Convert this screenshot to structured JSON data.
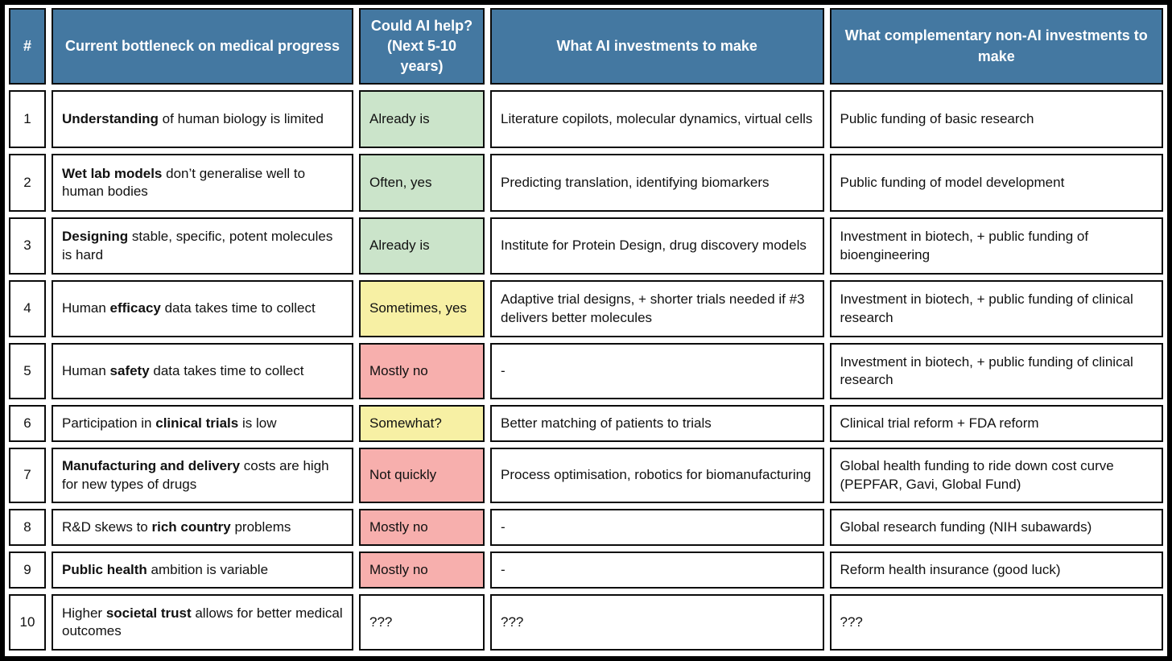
{
  "table": {
    "header": {
      "bg_color": "#4478A1",
      "text_color": "#FFFFFF",
      "columns": [
        "#",
        "Current bottleneck on medical progress",
        "Could AI help? (Next 5-10 years)",
        "What AI investments to make",
        "What complementary non-AI investments to make"
      ]
    },
    "status_colors": {
      "green": "#CBE4CA",
      "yellow": "#F7F0A4",
      "red": "#F7AFAD",
      "none": "#FFFFFF"
    },
    "rows": [
      {
        "num": "1",
        "bottleneck": [
          {
            "text": "Understanding",
            "bold": true
          },
          {
            "text": " of human biology is limited",
            "bold": false
          }
        ],
        "ai_help": "Already is",
        "ai_help_color": "green",
        "ai_investments": "Literature copilots, molecular dynamics, virtual cells",
        "non_ai_investments": "Public funding of basic research"
      },
      {
        "num": "2",
        "bottleneck": [
          {
            "text": "Wet lab models",
            "bold": true
          },
          {
            "text": " don’t generalise well to human bodies",
            "bold": false
          }
        ],
        "ai_help": "Often, yes",
        "ai_help_color": "green",
        "ai_investments": "Predicting translation, identifying biomarkers",
        "non_ai_investments": "Public funding of model development"
      },
      {
        "num": "3",
        "bottleneck": [
          {
            "text": "Designing",
            "bold": true
          },
          {
            "text": " stable, specific, potent molecules is hard",
            "bold": false
          }
        ],
        "ai_help": "Already is",
        "ai_help_color": "green",
        "ai_investments": "Institute for Protein Design, drug discovery models",
        "non_ai_investments": "Investment in biotech, + public funding of bioengineering"
      },
      {
        "num": "4",
        "bottleneck": [
          {
            "text": "Human ",
            "bold": false
          },
          {
            "text": "efficacy",
            "bold": true
          },
          {
            "text": " data takes time to collect",
            "bold": false
          }
        ],
        "ai_help": "Sometimes, yes",
        "ai_help_color": "yellow",
        "ai_investments": "Adaptive trial designs, + shorter trials needed if #3 delivers better molecules",
        "non_ai_investments": "Investment in biotech, + public funding of clinical research"
      },
      {
        "num": "5",
        "bottleneck": [
          {
            "text": "Human ",
            "bold": false
          },
          {
            "text": "safety",
            "bold": true
          },
          {
            "text": " data takes time to collect",
            "bold": false
          }
        ],
        "ai_help": "Mostly no",
        "ai_help_color": "red",
        "ai_investments": "-",
        "non_ai_investments": "Investment in biotech, + public funding of clinical research"
      },
      {
        "num": "6",
        "bottleneck": [
          {
            "text": "Participation in ",
            "bold": false
          },
          {
            "text": "clinical trials",
            "bold": true
          },
          {
            "text": " is low",
            "bold": false
          }
        ],
        "ai_help": "Somewhat?",
        "ai_help_color": "yellow",
        "ai_investments": "Better matching of patients to trials",
        "non_ai_investments": "Clinical trial reform + FDA reform"
      },
      {
        "num": "7",
        "bottleneck": [
          {
            "text": "Manufacturing and delivery",
            "bold": true
          },
          {
            "text": " costs are high for new types of drugs",
            "bold": false
          }
        ],
        "ai_help": "Not quickly",
        "ai_help_color": "red",
        "ai_investments": "Process optimisation, robotics for biomanufacturing",
        "non_ai_investments": "Global health funding to ride down cost curve (PEPFAR, Gavi, Global Fund)"
      },
      {
        "num": "8",
        "bottleneck": [
          {
            "text": "R&D skews to ",
            "bold": false
          },
          {
            "text": "rich country",
            "bold": true
          },
          {
            "text": " problems",
            "bold": false
          }
        ],
        "ai_help": "Mostly no",
        "ai_help_color": "red",
        "ai_investments": "-",
        "non_ai_investments": "Global research funding (NIH subawards)"
      },
      {
        "num": "9",
        "bottleneck": [
          {
            "text": "Public health",
            "bold": true
          },
          {
            "text": " ambition is variable",
            "bold": false
          }
        ],
        "ai_help": "Mostly no",
        "ai_help_color": "red",
        "ai_investments": "-",
        "non_ai_investments": "Reform health insurance (good luck)"
      },
      {
        "num": "10",
        "bottleneck": [
          {
            "text": "Higher ",
            "bold": false
          },
          {
            "text": "societal trust",
            "bold": true
          },
          {
            "text": " allows for better medical outcomes",
            "bold": false
          }
        ],
        "ai_help": "???",
        "ai_help_color": "none",
        "ai_investments": "???",
        "non_ai_investments": "???"
      }
    ]
  }
}
